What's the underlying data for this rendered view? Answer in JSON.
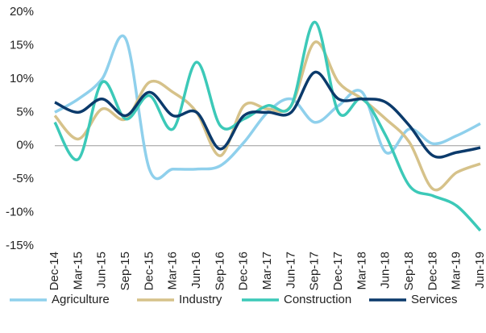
{
  "chart_data": {
    "type": "line",
    "categories": [
      "Dec-14",
      "Mar-15",
      "Jun-15",
      "Sep-15",
      "Dec-15",
      "Mar-16",
      "Jun-16",
      "Sep-16",
      "Dec-16",
      "Mar-17",
      "Jun-17",
      "Sep-17",
      "Dec-17",
      "Mar-18",
      "Jun-18",
      "Sep-18",
      "Dec-18",
      "Mar-19",
      "Jun-19"
    ],
    "series": [
      {
        "name": "Agriculture",
        "color": "#8fd0ec",
        "values": [
          5,
          7,
          10,
          16,
          -3.5,
          -3.5,
          -3.5,
          -3,
          0.5,
          5,
          7,
          3.5,
          6,
          8,
          -1,
          2.5,
          0.3,
          1.5,
          3.3
        ]
      },
      {
        "name": "Industry",
        "color": "#d6c28a",
        "values": [
          4.5,
          1,
          5.5,
          4,
          9.5,
          8,
          5,
          -1.5,
          6,
          5.5,
          6,
          15.5,
          9.5,
          7,
          4,
          0.5,
          -6.5,
          -4,
          -2.7
        ]
      },
      {
        "name": "Construction",
        "color": "#3cc9b8",
        "values": [
          3.5,
          -2,
          9.5,
          4,
          7.5,
          2.5,
          12.5,
          3,
          4,
          6,
          6,
          18.5,
          5,
          7,
          1.5,
          -6,
          -7.5,
          -9,
          -12.7
        ]
      },
      {
        "name": "Services",
        "color": "#0b3a6b",
        "values": [
          6.5,
          5,
          7,
          4.5,
          8,
          4.5,
          5,
          -0.5,
          4.5,
          5,
          5,
          11,
          7,
          7,
          6.5,
          3,
          -1.5,
          -1,
          -0.3
        ]
      }
    ],
    "ylim": [
      -15,
      20
    ],
    "yticks": [
      {
        "value": -15,
        "label": "-15%"
      },
      {
        "value": -10,
        "label": "-10%"
      },
      {
        "value": -5,
        "label": "-5%"
      },
      {
        "value": 0,
        "label": "0%"
      },
      {
        "value": 5,
        "label": "5%"
      },
      {
        "value": 10,
        "label": "10%"
      },
      {
        "value": 15,
        "label": "15%"
      },
      {
        "value": 20,
        "label": "20%"
      }
    ]
  }
}
